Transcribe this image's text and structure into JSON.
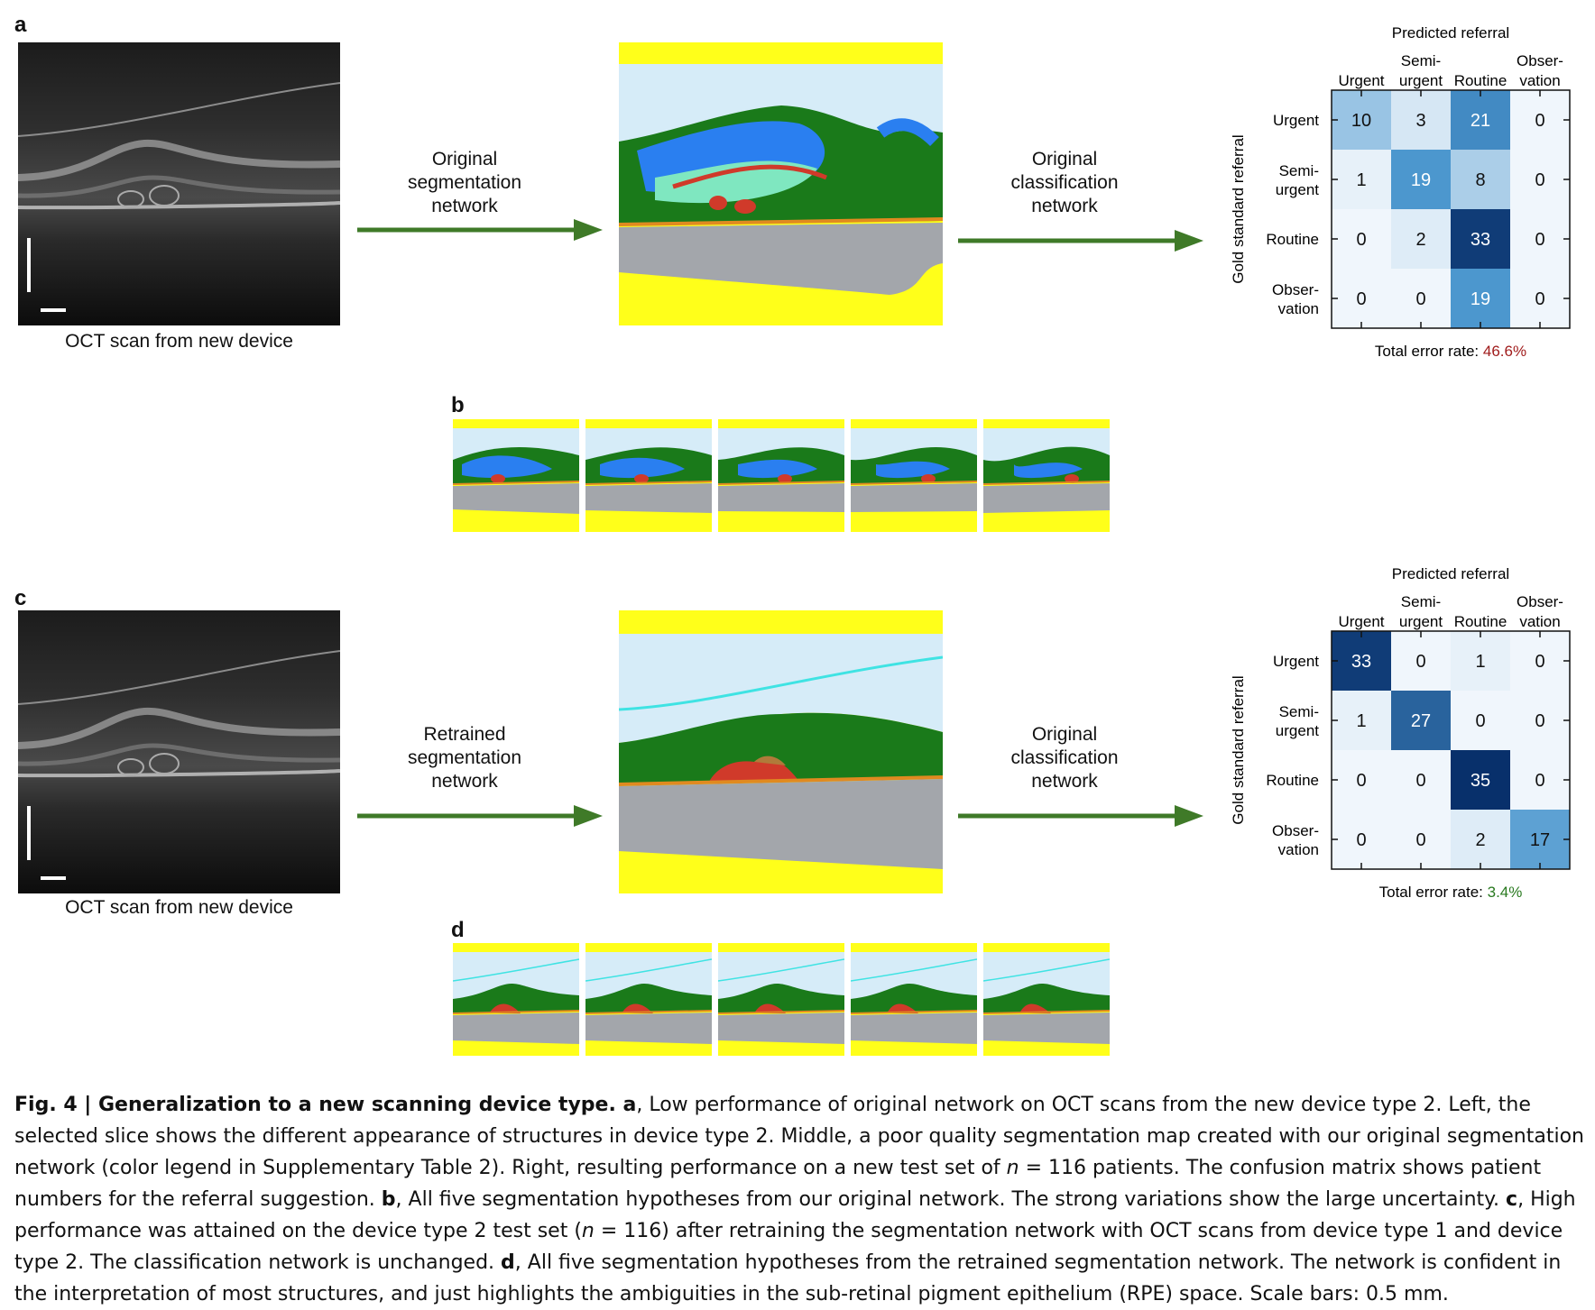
{
  "panels": {
    "a": "a",
    "b": "b",
    "c": "c",
    "d": "d"
  },
  "oct_caption": "OCT scan from new device",
  "flows": {
    "a_seg": [
      "Original",
      "segmentation",
      "network"
    ],
    "a_cls": [
      "Original",
      "classification",
      "network"
    ],
    "c_seg": [
      "Retrained",
      "segmentation",
      "network"
    ],
    "c_cls": [
      "Original",
      "classification",
      "network"
    ]
  },
  "matrix_labels": {
    "title": "Predicted referral",
    "ylabel": "Gold standard referral",
    "cols": [
      [
        "",
        "Urgent"
      ],
      [
        "Semi-",
        "urgent"
      ],
      [
        "",
        "Routine"
      ],
      [
        "Obser-",
        "vation"
      ]
    ],
    "rows": [
      [
        "Urgent"
      ],
      [
        "Semi-",
        "urgent"
      ],
      [
        "Routine"
      ],
      [
        "Obser-",
        "vation"
      ]
    ],
    "error_prefix": "Total error rate: "
  },
  "chart_data": [
    {
      "type": "heatmap",
      "title": "Predicted referral",
      "ylabel": "Gold standard referral",
      "x": [
        "Urgent",
        "Semi-urgent",
        "Routine",
        "Observation"
      ],
      "y": [
        "Urgent",
        "Semi-urgent",
        "Routine",
        "Observation"
      ],
      "values": [
        [
          10,
          3,
          21,
          0
        ],
        [
          1,
          19,
          8,
          0
        ],
        [
          0,
          2,
          33,
          0
        ],
        [
          0,
          0,
          19,
          0
        ]
      ],
      "error_rate": "46.6%",
      "error_color": "#a01c1c"
    },
    {
      "type": "heatmap",
      "title": "Predicted referral",
      "ylabel": "Gold standard referral",
      "x": [
        "Urgent",
        "Semi-urgent",
        "Routine",
        "Observation"
      ],
      "y": [
        "Urgent",
        "Semi-urgent",
        "Routine",
        "Observation"
      ],
      "values": [
        [
          33,
          0,
          1,
          0
        ],
        [
          1,
          27,
          0,
          0
        ],
        [
          0,
          0,
          35,
          0
        ],
        [
          0,
          0,
          2,
          17
        ]
      ],
      "error_rate": "3.4%",
      "error_color": "#2a7a20"
    }
  ],
  "colors": {
    "arrow": "#3f7a28",
    "yellow": "#ffff1a",
    "vitreous": "#d6ecf8",
    "retina": "#1a7a1a",
    "fluid": "#2a7ff0",
    "grey": "#a3a6ab",
    "rpe": "#e08a20",
    "red": "#d03a2a"
  },
  "caption": {
    "lead": "Fig. 4 | Generalization to a new scanning device type. ",
    "a_letter": "a",
    "a_text": ", Low performance of original network on OCT scans from the new device type 2. Left, the selected slice shows the different appearance of structures in device type 2. Middle, a poor quality segmentation map created with our original segmentation network (color legend in Supplementary Table 2). Right, resulting performance on a new test set of ",
    "n_var": "n",
    "n_val": " = 116 patients. The confusion matrix shows patient numbers for the referral suggestion. ",
    "b_letter": "b",
    "b_text": ", All five segmentation hypotheses from our original network. The strong variations show the large uncertainty. ",
    "c_letter": "c",
    "c_text": ", High performance was attained on the device type 2 test set (",
    "c_n": "n",
    "c_n_val": " = 116) after retraining the segmentation network with OCT scans from device type 1 and device type 2. The classification network is unchanged. ",
    "d_letter": "d",
    "d_text": ", All five segmentation hypotheses from the retrained segmentation network. The network is confident in the interpretation of most structures, and just highlights the ambiguities in the sub-retinal pigment epithelium (RPE) space. Scale bars: 0.5 mm."
  }
}
